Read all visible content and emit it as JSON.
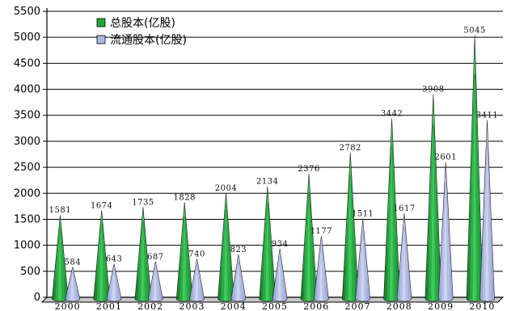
{
  "chart_data": {
    "type": "bar",
    "categories": [
      "2000",
      "2001",
      "2002",
      "2003",
      "2004",
      "2005",
      "2006",
      "2007",
      "2008",
      "2009",
      "2010"
    ],
    "series": [
      {
        "name": "总股本(亿股)",
        "color": "#1fa83a",
        "values": [
          1581,
          1674,
          1735,
          1828,
          2004,
          2134,
          2376,
          2782,
          3442,
          3908,
          5045
        ]
      },
      {
        "name": "流通股本(亿股)",
        "color": "#aab6e6",
        "values": [
          584,
          643,
          687,
          740,
          823,
          934,
          1177,
          1511,
          1617,
          2601,
          3411
        ]
      }
    ],
    "data_labels": {
      "series_0": [
        "1581",
        "1674",
        "1735",
        "1828",
        "2004",
        "2134",
        "2376",
        "2782",
        "3442",
        "3908",
        "5045"
      ],
      "series_1": [
        "584",
        "643",
        "687",
        "740",
        "823",
        "934",
        "1177",
        "1511",
        "1617",
        "2601",
        "3411"
      ]
    },
    "y_ticks": [
      "0",
      "500",
      "1000",
      "1500",
      "2000",
      "2500",
      "3000",
      "3500",
      "4000",
      "4500",
      "5000",
      "5500"
    ],
    "ylim": [
      0,
      5500
    ],
    "grid": true,
    "legend": "top-left",
    "mark_shape": "cone",
    "title": "",
    "xlabel": "",
    "ylabel": ""
  }
}
